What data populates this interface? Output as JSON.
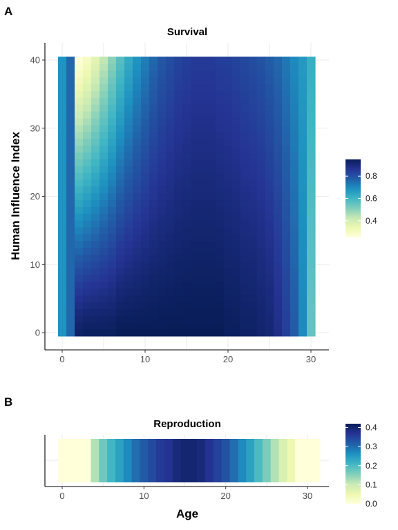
{
  "chart_data": [
    {
      "type": "heatmap",
      "panel_label": "A",
      "title": "Survival",
      "xlabel": "",
      "ylabel": "Human Influence Index",
      "x_range": [
        0,
        30
      ],
      "y_range": [
        0,
        40
      ],
      "x_ticks": [
        "0",
        "10",
        "20",
        "30"
      ],
      "y_ticks": [
        "0",
        "10",
        "20",
        "30",
        "40"
      ],
      "colorscale": "YlGnBu",
      "value_range": [
        0.25,
        0.95
      ],
      "legend": {
        "ticks": [
          "0.4",
          "0.6",
          "0.8"
        ],
        "tick_values": [
          0.4,
          0.6,
          0.8
        ],
        "placement": "right"
      },
      "column_profile_at_hii_0": {
        "x": [
          0,
          1,
          2,
          3,
          4,
          5,
          6,
          7,
          8,
          9,
          10,
          11,
          12,
          13,
          14,
          15,
          16,
          17,
          18,
          19,
          20,
          21,
          22,
          23,
          24,
          25,
          26,
          27,
          28,
          29,
          30
        ],
        "values": [
          0.68,
          0.76,
          0.93,
          0.94,
          0.94,
          0.94,
          0.94,
          0.95,
          0.95,
          0.95,
          0.95,
          0.95,
          0.95,
          0.95,
          0.95,
          0.95,
          0.95,
          0.95,
          0.95,
          0.95,
          0.94,
          0.94,
          0.93,
          0.93,
          0.92,
          0.91,
          0.88,
          0.84,
          0.78,
          0.7,
          0.55
        ]
      },
      "column_profile_at_hii_40": {
        "x": [
          0,
          1,
          2,
          3,
          4,
          5,
          6,
          7,
          8,
          9,
          10,
          11,
          12,
          13,
          14,
          15,
          16,
          17,
          18,
          19,
          20,
          21,
          22,
          23,
          24,
          25,
          26,
          27,
          28,
          29,
          30
        ],
        "values": [
          0.68,
          0.76,
          0.26,
          0.3,
          0.36,
          0.43,
          0.5,
          0.57,
          0.63,
          0.68,
          0.72,
          0.76,
          0.79,
          0.81,
          0.83,
          0.84,
          0.85,
          0.85,
          0.85,
          0.84,
          0.84,
          0.83,
          0.82,
          0.81,
          0.8,
          0.78,
          0.76,
          0.73,
          0.7,
          0.67,
          0.62
        ]
      },
      "grid": true
    },
    {
      "type": "heatmap",
      "panel_label": "B",
      "title": "Reproduction",
      "xlabel": "Age",
      "ylabel": "",
      "x_range": [
        0,
        31
      ],
      "x_ticks": [
        "0",
        "10",
        "20",
        "30"
      ],
      "colorscale": "YlGnBu",
      "value_range": [
        0,
        0.42
      ],
      "legend": {
        "ticks": [
          "0.0",
          "0.1",
          "0.2",
          "0.3",
          "0.4"
        ],
        "tick_values": [
          0,
          0.1,
          0.2,
          0.3,
          0.4
        ],
        "placement": "right"
      },
      "x": [
        0,
        1,
        2,
        3,
        4,
        5,
        6,
        7,
        8,
        9,
        10,
        11,
        12,
        13,
        14,
        15,
        16,
        17,
        18,
        19,
        20,
        21,
        22,
        23,
        24,
        25,
        26,
        27,
        28,
        29,
        30,
        31
      ],
      "values": [
        0,
        0,
        0,
        0,
        0.12,
        0.17,
        0.21,
        0.24,
        0.27,
        0.3,
        0.32,
        0.34,
        0.36,
        0.37,
        0.39,
        0.4,
        0.4,
        0.39,
        0.37,
        0.35,
        0.33,
        0.3,
        0.27,
        0.24,
        0.2,
        0.16,
        0.12,
        0.08,
        0.05,
        0,
        0,
        0
      ],
      "grid": true
    }
  ],
  "colors": {
    "ylgnbu": [
      "#ffffd9",
      "#edf8b1",
      "#c7e9b4",
      "#7fcdbb",
      "#41b6c4",
      "#1d91c0",
      "#225ea8",
      "#253494",
      "#081d58"
    ]
  }
}
